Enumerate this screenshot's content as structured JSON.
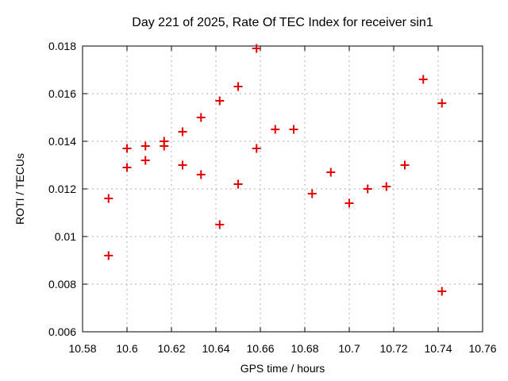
{
  "chart_data": {
    "type": "scatter",
    "title": "Day 221 of 2025, Rate Of TEC Index for receiver sin1",
    "xlabel": "GPS time / hours",
    "ylabel": "ROTI / TECUs",
    "xlim": [
      10.58,
      10.76
    ],
    "ylim": [
      0.006,
      0.018
    ],
    "xticks": [
      {
        "value": 10.58,
        "label": "10.58"
      },
      {
        "value": 10.6,
        "label": "10.6"
      },
      {
        "value": 10.62,
        "label": "10.62"
      },
      {
        "value": 10.64,
        "label": "10.64"
      },
      {
        "value": 10.66,
        "label": "10.66"
      },
      {
        "value": 10.68,
        "label": "10.68"
      },
      {
        "value": 10.7,
        "label": "10.7"
      },
      {
        "value": 10.72,
        "label": "10.72"
      },
      {
        "value": 10.74,
        "label": "10.74"
      },
      {
        "value": 10.76,
        "label": "10.76"
      }
    ],
    "yticks": [
      {
        "value": 0.006,
        "label": "0.006"
      },
      {
        "value": 0.008,
        "label": "0.008"
      },
      {
        "value": 0.01,
        "label": "0.01"
      },
      {
        "value": 0.012,
        "label": "0.012"
      },
      {
        "value": 0.014,
        "label": "0.014"
      },
      {
        "value": 0.016,
        "label": "0.016"
      },
      {
        "value": 0.018,
        "label": "0.018"
      }
    ],
    "grid": true,
    "legend_position": "none",
    "marker": {
      "shape": "plus",
      "size": 11,
      "stroke_width": 2,
      "color": "#e60000"
    },
    "colors": {
      "background": "#ffffff",
      "border": "#000000",
      "grid": "#b0b0b0",
      "text": "#000000",
      "marker": "#e60000"
    },
    "points": [
      [
        10.5917,
        0.0116
      ],
      [
        10.5917,
        0.0092
      ],
      [
        10.6,
        0.0137
      ],
      [
        10.6,
        0.0129
      ],
      [
        10.6083,
        0.0138
      ],
      [
        10.6083,
        0.0132
      ],
      [
        10.6167,
        0.014
      ],
      [
        10.6167,
        0.0138
      ],
      [
        10.625,
        0.0144
      ],
      [
        10.625,
        0.013
      ],
      [
        10.6333,
        0.015
      ],
      [
        10.6333,
        0.0126
      ],
      [
        10.6417,
        0.0157
      ],
      [
        10.6417,
        0.0105
      ],
      [
        10.65,
        0.0163
      ],
      [
        10.65,
        0.0122
      ],
      [
        10.6583,
        0.0179
      ],
      [
        10.6583,
        0.0137
      ],
      [
        10.6667,
        0.0145
      ],
      [
        10.675,
        0.0145
      ],
      [
        10.6833,
        0.0118
      ],
      [
        10.6917,
        0.0127
      ],
      [
        10.7,
        0.0114
      ],
      [
        10.7083,
        0.012
      ],
      [
        10.7167,
        0.0121
      ],
      [
        10.725,
        0.013
      ],
      [
        10.7333,
        0.0166
      ],
      [
        10.7417,
        0.0156
      ],
      [
        10.7417,
        0.0077
      ]
    ]
  }
}
